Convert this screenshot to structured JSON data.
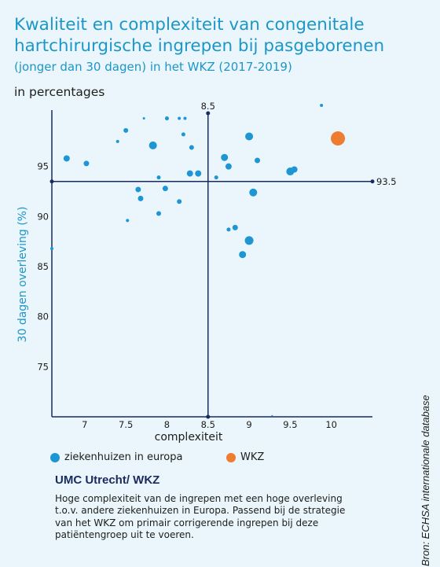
{
  "header": {
    "title": "Kwaliteit en complexiteit van congenitale hartchirurgische ingrepen bij pasgeborenen",
    "subtitle": "(jonger dan 30 dagen) in het WKZ (2017-2019)",
    "unit_label": "in percentages"
  },
  "legend": [
    {
      "label": "ziekenhuizen in europa",
      "color": "#1d96d3"
    },
    {
      "label": "WKZ",
      "color": "#ee7d32"
    }
  ],
  "footer": {
    "org_title": "UMC Utrecht/ WKZ",
    "description": "Hoge complexiteit van de ingrepen met een hoge overleving t.o.v. andere ziekenhuizen in Europa. Passend bij de strategie van het WKZ om primair corrigerende ingrepen bij deze patiëntengroep uit te voeren.",
    "source": "Bron: ECHSA internationale database"
  },
  "chart_data": {
    "type": "scatter",
    "title": "Kwaliteit en complexiteit van congenitale hartchirurgische ingrepen bij pasgeborenen",
    "xlabel": "complexiteit",
    "ylabel": "30 dagen overleving (%)",
    "xlim": [
      6.6,
      10.5
    ],
    "ylim": [
      70,
      100
    ],
    "x_ticks": [
      7,
      7.5,
      8,
      8.5,
      9,
      9.5,
      10
    ],
    "x_tick_labels": [
      "7",
      "7.5",
      "8",
      "8.5",
      "9",
      "9.5",
      "10"
    ],
    "y_ticks": [
      75,
      80,
      85,
      90,
      95
    ],
    "y_tick_labels": [
      "75",
      "80",
      "85",
      "90",
      "95"
    ],
    "reference_lines": [
      {
        "axis": "x",
        "value": 8.5,
        "label": "8.5"
      },
      {
        "axis": "y",
        "value": 93.5,
        "label": "93.5"
      }
    ],
    "series": [
      {
        "name": "ziekenhuizen in europa",
        "color": "#1d96d3",
        "points": [
          {
            "x": 6.6,
            "y": 86.8,
            "size": 2
          },
          {
            "x": 6.78,
            "y": 95.8,
            "size": 4
          },
          {
            "x": 7.02,
            "y": 95.3,
            "size": 3.5
          },
          {
            "x": 7.4,
            "y": 97.5,
            "size": 2
          },
          {
            "x": 7.5,
            "y": 98.6,
            "size": 3
          },
          {
            "x": 7.52,
            "y": 89.6,
            "size": 2
          },
          {
            "x": 7.65,
            "y": 92.7,
            "size": 3.5
          },
          {
            "x": 7.68,
            "y": 91.8,
            "size": 3.5
          },
          {
            "x": 7.72,
            "y": 99.8,
            "size": 1.5
          },
          {
            "x": 7.83,
            "y": 97.1,
            "size": 5
          },
          {
            "x": 7.9,
            "y": 93.9,
            "size": 2.5
          },
          {
            "x": 7.9,
            "y": 90.3,
            "size": 3
          },
          {
            "x": 7.98,
            "y": 92.8,
            "size": 3.5
          },
          {
            "x": 8.0,
            "y": 99.8,
            "size": 2.5
          },
          {
            "x": 8.15,
            "y": 99.8,
            "size": 2
          },
          {
            "x": 8.15,
            "y": 91.5,
            "size": 3
          },
          {
            "x": 8.2,
            "y": 98.2,
            "size": 2.5
          },
          {
            "x": 8.22,
            "y": 99.8,
            "size": 2
          },
          {
            "x": 8.28,
            "y": 94.3,
            "size": 4
          },
          {
            "x": 8.3,
            "y": 96.9,
            "size": 3
          },
          {
            "x": 8.38,
            "y": 94.3,
            "size": 4
          },
          {
            "x": 8.6,
            "y": 93.9,
            "size": 2.5
          },
          {
            "x": 8.7,
            "y": 95.9,
            "size": 4.5
          },
          {
            "x": 8.75,
            "y": 95.0,
            "size": 4
          },
          {
            "x": 8.75,
            "y": 88.7,
            "size": 2.5
          },
          {
            "x": 8.83,
            "y": 88.9,
            "size": 3.5
          },
          {
            "x": 8.92,
            "y": 86.2,
            "size": 4.5
          },
          {
            "x": 9.0,
            "y": 98.0,
            "size": 5
          },
          {
            "x": 9.0,
            "y": 87.6,
            "size": 5.5
          },
          {
            "x": 9.05,
            "y": 92.4,
            "size": 5
          },
          {
            "x": 9.1,
            "y": 95.6,
            "size": 3.5
          },
          {
            "x": 9.28,
            "y": 70.1,
            "size": 1
          },
          {
            "x": 9.5,
            "y": 94.5,
            "size": 5
          },
          {
            "x": 9.55,
            "y": 94.7,
            "size": 4
          },
          {
            "x": 9.88,
            "y": 101.1,
            "size": 2
          }
        ]
      },
      {
        "name": "WKZ",
        "color": "#ee7d32",
        "points": [
          {
            "x": 10.08,
            "y": 97.8,
            "size": 9
          }
        ]
      }
    ]
  }
}
